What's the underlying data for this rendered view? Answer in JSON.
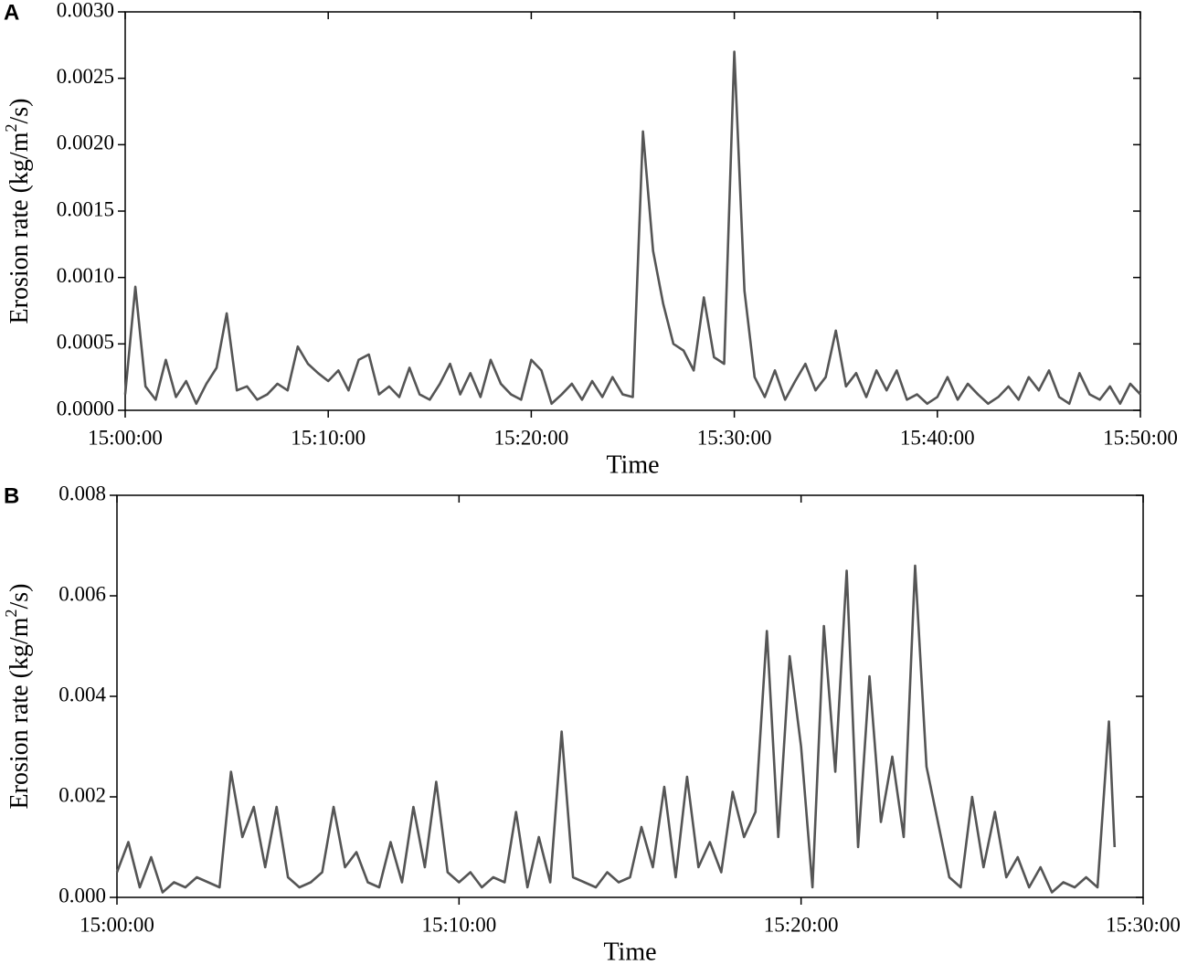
{
  "chart_data": [
    {
      "type": "line",
      "panel_label": "A",
      "xlabel": "Time",
      "ylabel": [
        "Erosion rate (kg/m",
        "2",
        "/s)"
      ],
      "xlim": [
        "15:00:00",
        "15:50:00"
      ],
      "xticks": [
        "15:00:00",
        "15:10:00",
        "15:20:00",
        "15:30:00",
        "15:40:00",
        "15:50:00"
      ],
      "ylim": [
        0,
        0.003
      ],
      "yticks": [
        {
          "value": 0,
          "label": "0.0000"
        },
        {
          "value": 0.0005,
          "label": "0.0005"
        },
        {
          "value": 0.001,
          "label": "0.0010"
        },
        {
          "value": 0.0015,
          "label": "0.0015"
        },
        {
          "value": 0.002,
          "label": "0.0020"
        },
        {
          "value": 0.0025,
          "label": "0.0025"
        },
        {
          "value": 0.003,
          "label": "0.0030"
        }
      ],
      "color": "#555555",
      "x": [
        "15:00:00",
        "15:00:30",
        "15:01:00",
        "15:01:30",
        "15:02:00",
        "15:02:30",
        "15:03:00",
        "15:03:30",
        "15:04:00",
        "15:04:30",
        "15:05:00",
        "15:05:30",
        "15:06:00",
        "15:06:30",
        "15:07:00",
        "15:07:30",
        "15:08:00",
        "15:08:30",
        "15:09:00",
        "15:09:30",
        "15:10:00",
        "15:10:30",
        "15:11:00",
        "15:11:30",
        "15:12:00",
        "15:12:30",
        "15:13:00",
        "15:13:30",
        "15:14:00",
        "15:14:30",
        "15:15:00",
        "15:15:30",
        "15:16:00",
        "15:16:30",
        "15:17:00",
        "15:17:30",
        "15:18:00",
        "15:18:30",
        "15:19:00",
        "15:19:30",
        "15:20:00",
        "15:20:30",
        "15:21:00",
        "15:21:30",
        "15:22:00",
        "15:22:30",
        "15:23:00",
        "15:23:30",
        "15:24:00",
        "15:24:30",
        "15:25:00",
        "15:25:30",
        "15:26:00",
        "15:26:30",
        "15:27:00",
        "15:27:30",
        "15:28:00",
        "15:28:30",
        "15:29:00",
        "15:29:30",
        "15:30:00",
        "15:30:30",
        "15:31:00",
        "15:31:30",
        "15:32:00",
        "15:32:30",
        "15:33:00",
        "15:33:30",
        "15:34:00",
        "15:34:30",
        "15:35:00",
        "15:35:30",
        "15:36:00",
        "15:36:30",
        "15:37:00",
        "15:37:30",
        "15:38:00",
        "15:38:30",
        "15:39:00",
        "15:39:30",
        "15:40:00",
        "15:40:30",
        "15:41:00",
        "15:41:30",
        "15:42:00",
        "15:42:30",
        "15:43:00",
        "15:43:30",
        "15:44:00",
        "15:44:30",
        "15:45:00",
        "15:45:30",
        "15:46:00",
        "15:46:30",
        "15:47:00",
        "15:47:30",
        "15:48:00",
        "15:48:30",
        "15:49:00",
        "15:49:30",
        "15:50:00"
      ],
      "values": [
        0.00012,
        0.00093,
        0.00018,
        8e-05,
        0.00038,
        0.0001,
        0.00022,
        5e-05,
        0.0002,
        0.00032,
        0.00073,
        0.00015,
        0.00018,
        8e-05,
        0.00012,
        0.0002,
        0.00015,
        0.00048,
        0.00035,
        0.00028,
        0.00022,
        0.0003,
        0.00015,
        0.00038,
        0.00042,
        0.00012,
        0.00018,
        0.0001,
        0.00032,
        0.00012,
        8e-05,
        0.0002,
        0.00035,
        0.00012,
        0.00028,
        0.0001,
        0.00038,
        0.0002,
        0.00012,
        8e-05,
        0.00038,
        0.0003,
        5e-05,
        0.00012,
        0.0002,
        8e-05,
        0.00022,
        0.0001,
        0.00025,
        0.00012,
        0.0001,
        0.0021,
        0.0012,
        0.0008,
        0.0005,
        0.00045,
        0.0003,
        0.00085,
        0.0004,
        0.00035,
        0.0027,
        0.0009,
        0.00025,
        0.0001,
        0.0003,
        8e-05,
        0.00022,
        0.00035,
        0.00015,
        0.00025,
        0.0006,
        0.00018,
        0.00028,
        0.0001,
        0.0003,
        0.00015,
        0.0003,
        8e-05,
        0.00012,
        5e-05,
        0.0001,
        0.00025,
        8e-05,
        0.0002,
        0.00012,
        5e-05,
        0.0001,
        0.00018,
        8e-05,
        0.00025,
        0.00015,
        0.0003,
        0.0001,
        5e-05,
        0.00028,
        0.00012,
        8e-05,
        0.00018,
        5e-05,
        0.0002,
        0.00012
      ]
    },
    {
      "type": "line",
      "panel_label": "B",
      "xlabel": "Time",
      "ylabel": [
        "Erosion rate (kg/m",
        "2",
        "/s)"
      ],
      "xlim": [
        "15:00:00",
        "15:30:00"
      ],
      "xticks": [
        "15:00:00",
        "15:10:00",
        "15:20:00",
        "15:30:00"
      ],
      "ylim": [
        0,
        0.008
      ],
      "yticks": [
        {
          "value": 0,
          "label": "0.000"
        },
        {
          "value": 0.002,
          "label": "0.002"
        },
        {
          "value": 0.004,
          "label": "0.004"
        },
        {
          "value": 0.006,
          "label": "0.006"
        },
        {
          "value": 0.008,
          "label": "0.008"
        }
      ],
      "color": "#555555",
      "x": [
        "15:00:00",
        "15:00:20",
        "15:00:40",
        "15:01:00",
        "15:01:20",
        "15:01:40",
        "15:02:00",
        "15:02:20",
        "15:02:40",
        "15:03:00",
        "15:03:20",
        "15:03:40",
        "15:04:00",
        "15:04:20",
        "15:04:40",
        "15:05:00",
        "15:05:20",
        "15:05:40",
        "15:06:00",
        "15:06:20",
        "15:06:40",
        "15:07:00",
        "15:07:20",
        "15:07:40",
        "15:08:00",
        "15:08:20",
        "15:08:40",
        "15:09:00",
        "15:09:20",
        "15:09:40",
        "15:10:00",
        "15:10:20",
        "15:10:40",
        "15:11:00",
        "15:11:20",
        "15:11:40",
        "15:12:00",
        "15:12:20",
        "15:12:40",
        "15:13:00",
        "15:13:20",
        "15:13:40",
        "15:14:00",
        "15:14:20",
        "15:14:40",
        "15:15:00",
        "15:15:20",
        "15:15:40",
        "15:16:00",
        "15:16:20",
        "15:16:40",
        "15:17:00",
        "15:17:20",
        "15:17:40",
        "15:18:00",
        "15:18:20",
        "15:18:40",
        "15:19:00",
        "15:19:20",
        "15:19:40",
        "15:20:00",
        "15:20:20",
        "15:20:40",
        "15:21:00",
        "15:21:20",
        "15:21:40",
        "15:22:00",
        "15:22:20",
        "15:22:40",
        "15:23:00",
        "15:23:20",
        "15:23:40",
        "15:24:00",
        "15:24:20",
        "15:24:40",
        "15:25:00",
        "15:25:20",
        "15:25:40",
        "15:26:00",
        "15:26:20",
        "15:26:40",
        "15:27:00",
        "15:27:20",
        "15:27:40",
        "15:28:00",
        "15:28:20",
        "15:28:40",
        "15:29:00",
        "15:29:10"
      ],
      "values": [
        0.0005,
        0.0011,
        0.0002,
        0.0008,
        0.0001,
        0.0003,
        0.0002,
        0.0004,
        0.0003,
        0.0002,
        0.0025,
        0.0012,
        0.0018,
        0.0006,
        0.0018,
        0.0004,
        0.0002,
        0.0003,
        0.0005,
        0.0018,
        0.0006,
        0.0009,
        0.0003,
        0.0002,
        0.0011,
        0.0003,
        0.0018,
        0.0006,
        0.0023,
        0.0005,
        0.0003,
        0.0005,
        0.0002,
        0.0004,
        0.0003,
        0.0017,
        0.0002,
        0.0012,
        0.0003,
        0.0033,
        0.0004,
        0.0003,
        0.0002,
        0.0005,
        0.0003,
        0.0004,
        0.0014,
        0.0006,
        0.0022,
        0.0004,
        0.0024,
        0.0006,
        0.0011,
        0.0005,
        0.0021,
        0.0012,
        0.0017,
        0.0053,
        0.0012,
        0.0048,
        0.003,
        0.0002,
        0.0054,
        0.0025,
        0.0065,
        0.001,
        0.0044,
        0.0015,
        0.0028,
        0.0012,
        0.0066,
        0.0026,
        0.0015,
        0.0004,
        0.0002,
        0.002,
        0.0006,
        0.0017,
        0.0004,
        0.0008,
        0.0002,
        0.0006,
        0.0001,
        0.0003,
        0.0002,
        0.0004,
        0.0002,
        0.0035,
        0.001
      ]
    }
  ]
}
